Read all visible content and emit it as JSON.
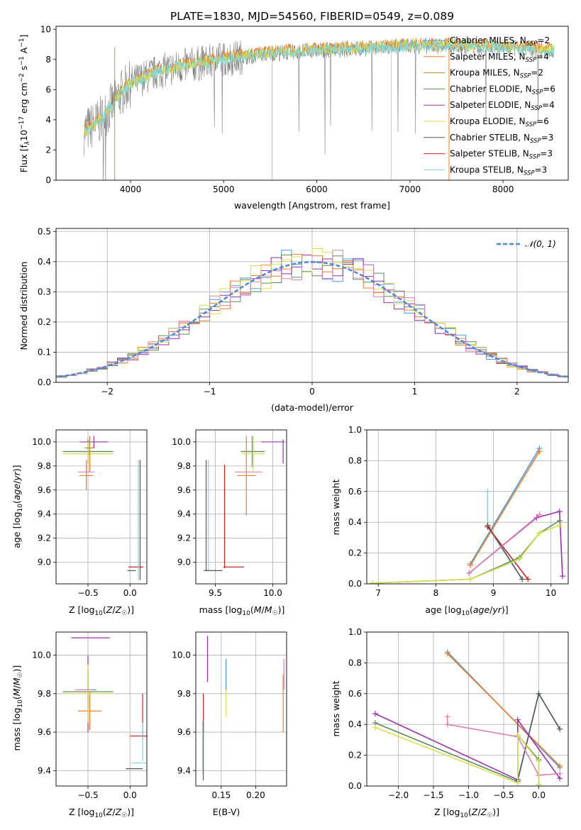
{
  "figure": {
    "title": "PLATE=1830, MJD=54560, FIBERID=0549, z=0.089",
    "model_colors": {
      "Chabrier MILES": "#4c9be0",
      "Salpeter MILES": "#f07f28",
      "Kroupa MILES": "#b08a2a",
      "Chabrier ELODIE": "#5c8c5c",
      "Salpeter ELODIE": "#9b2fae",
      "Kroupa ELODIE": "#d8df4a",
      "Chabrier STELIB": "#555555",
      "Salpeter STELIB": "#c8251f",
      "Kroupa STELIB": "#7fd6dc",
      "pink_series": "#e07fb2"
    }
  },
  "chart_data": [
    {
      "id": "spectrum",
      "type": "line",
      "title": "PLATE=1830, MJD=54560, FIBERID=0549, z=0.089",
      "xlabel": "wavelength [Angstrom, rest frame]",
      "ylabel": "Flux [f_λ10^-17 erg cm^-2 s^-1 A^-1]",
      "xlim": [
        3200,
        8700
      ],
      "ylim": [
        0,
        10.2
      ],
      "xticks": [
        "4000",
        "5000",
        "6000",
        "7000",
        "8000"
      ],
      "yticks": [
        "0",
        "2",
        "4",
        "6",
        "8",
        "10"
      ],
      "grid": false,
      "legend_position": "right",
      "legend": [
        {
          "name": "Chabrier MILES",
          "n": "2"
        },
        {
          "name": "Salpeter MILES",
          "n": "4"
        },
        {
          "name": "Kroupa MILES",
          "n": "2"
        },
        {
          "name": "Chabrier ELODIE",
          "n": "6"
        },
        {
          "name": "Salpeter ELODIE",
          "n": "4"
        },
        {
          "name": "Kroupa ELODIE",
          "n": "6"
        },
        {
          "name": "Chabrier STELIB",
          "n": "3"
        },
        {
          "name": "Salpeter STELIB",
          "n": "3"
        },
        {
          "name": "Kroupa STELIB",
          "n": "3"
        }
      ],
      "data_envelope": {
        "x": [
          3500,
          3700,
          3900,
          4000,
          4300,
          4600,
          5000,
          5500,
          6000,
          6500,
          7000,
          7500,
          8000,
          8500
        ],
        "y": [
          3.2,
          4.1,
          5.8,
          6.4,
          7.2,
          7.6,
          8.0,
          8.4,
          8.6,
          8.7,
          8.9,
          8.9,
          8.8,
          8.6
        ]
      }
    },
    {
      "id": "residuals",
      "type": "line",
      "xlabel": "(data-model)/error",
      "ylabel": "Normed distribution",
      "xlim": [
        -2.5,
        2.5
      ],
      "ylim": [
        0,
        0.51
      ],
      "xticks": [
        "−2",
        "−1",
        "0",
        "1",
        "2"
      ],
      "yticks": [
        "0.0",
        "0.1",
        "0.2",
        "0.3",
        "0.4",
        "0.5"
      ],
      "grid": true,
      "legend_position": "top-right",
      "reference": {
        "name": "𝒩(0, 1)",
        "mean": 0,
        "sigma": 1
      }
    },
    {
      "id": "age_vs_Z",
      "type": "scatter",
      "xlabel": "Z [log10(Z/Z☉)]",
      "ylabel": "age  [log10(age/yr)]",
      "xlim": [
        -0.88,
        0.2
      ],
      "ylim": [
        8.82,
        10.1
      ],
      "xticks": [
        "−0.5",
        "0.0"
      ],
      "yticks": [
        "9.0",
        "9.2",
        "9.4",
        "9.6",
        "9.8",
        "10.0"
      ],
      "grid": true,
      "points": [
        {
          "series": "Salpeter ELODIE",
          "x": -0.43,
          "y": 10.0,
          "xerr": 0.17,
          "yerr": 0.05
        },
        {
          "series": "Chabrier MILES",
          "x": -0.5,
          "y": 9.92,
          "xerr": 0.28,
          "yerr": 0.1
        },
        {
          "series": "Chabrier ELODIE",
          "x": -0.5,
          "y": 9.92,
          "xerr": 0.3,
          "yerr": 0.1
        },
        {
          "series": "Salpeter MILES",
          "x": -0.48,
          "y": 9.9,
          "xerr": 0.2,
          "yerr": 0.15
        },
        {
          "series": "Kroupa ELODIE",
          "x": -0.5,
          "y": 9.9,
          "xerr": 0.3,
          "yerr": 0.1
        },
        {
          "series": "Kroupa MILES",
          "x": -0.48,
          "y": 9.95,
          "xerr": 0.06,
          "yerr": 0.06
        },
        {
          "series": "pink_series",
          "x": -0.52,
          "y": 9.75,
          "xerr": 0.1,
          "yerr": 0.1
        },
        {
          "series": "Salpeter MILES",
          "x": -0.52,
          "y": 9.72,
          "xerr": 0.08,
          "yerr": 0.12
        },
        {
          "series": "Chabrier STELIB",
          "x": 0.02,
          "y": 8.93,
          "xerr": 0.05,
          "yerr": 0.0
        },
        {
          "series": "Salpeter STELIB",
          "x": 0.07,
          "y": 8.96,
          "xerr": 0.09,
          "yerr": 0.0
        },
        {
          "series": "Kroupa STELIB",
          "x": 0.1,
          "y": 9.35,
          "xerr": 0.0,
          "yerr": 0.5
        },
        {
          "series": "Chabrier STELIB",
          "x": 0.12,
          "y": 9.35,
          "xerr": 0.0,
          "yerr": 0.5
        }
      ]
    },
    {
      "id": "age_vs_mass",
      "type": "scatter",
      "xlabel": "mass [log10(M/M☉)]",
      "ylabel": "",
      "xlim": [
        9.33,
        10.12
      ],
      "ylim": [
        8.82,
        10.1
      ],
      "xticks": [
        "9.5",
        "10.0"
      ],
      "yticks": [
        "9.0",
        "9.2",
        "9.4",
        "9.6",
        "9.8",
        "10.0"
      ],
      "grid": true,
      "points": [
        {
          "series": "Salpeter ELODIE",
          "x": 10.0,
          "y": 10.0,
          "xerr": 0.1,
          "yerr": 0.0
        },
        {
          "series": "Salpeter ELODIE",
          "x": 10.09,
          "y": 9.92,
          "xerr": 0.0,
          "yerr": 0.1
        },
        {
          "series": "Chabrier MILES",
          "x": 9.82,
          "y": 9.92,
          "xerr": 0.1,
          "yerr": 0.13
        },
        {
          "series": "Chabrier ELODIE",
          "x": 9.83,
          "y": 9.92,
          "xerr": 0.1,
          "yerr": 0.1
        },
        {
          "series": "Salpeter MILES",
          "x": 9.77,
          "y": 9.72,
          "xerr": 0.08,
          "yerr": 0.33
        },
        {
          "series": "Kroupa ELODIE",
          "x": 9.83,
          "y": 9.9,
          "xerr": 0.1,
          "yerr": 0.15
        },
        {
          "series": "pink_series",
          "x": 9.79,
          "y": 9.75,
          "xerr": 0.12,
          "yerr": 0.0
        },
        {
          "series": "Chabrier STELIB",
          "x": 9.42,
          "y": 9.39,
          "xerr": 0.0,
          "yerr": 0.46
        },
        {
          "series": "Kroupa STELIB",
          "x": 9.44,
          "y": 9.39,
          "xerr": 0.0,
          "yerr": 0.46
        },
        {
          "series": "Chabrier STELIB",
          "x": 9.48,
          "y": 8.93,
          "xerr": 0.08,
          "yerr": 0.0
        },
        {
          "series": "Salpeter STELIB",
          "x": 9.58,
          "y": 9.38,
          "xerr": 0.0,
          "yerr": 0.43
        },
        {
          "series": "Salpeter STELIB",
          "x": 9.66,
          "y": 8.96,
          "xerr": 0.09,
          "yerr": 0.0
        }
      ]
    },
    {
      "id": "weight_vs_age",
      "type": "line",
      "xlabel": "age  [log10(age/yr)]",
      "ylabel": "mass weight",
      "xlim": [
        6.8,
        10.3
      ],
      "ylim": [
        0,
        1.0
      ],
      "xticks": [
        "7",
        "8",
        "9",
        "10"
      ],
      "yticks": [
        "0.0",
        "0.2",
        "0.4",
        "0.6",
        "0.8",
        "1.0"
      ],
      "grid": true,
      "series": [
        {
          "name": "Chabrier MILES",
          "x": [
            8.6,
            9.8
          ],
          "y": [
            0.13,
            0.88
          ]
        },
        {
          "name": "Salpeter MILES",
          "x": [
            8.6,
            9.8
          ],
          "y": [
            0.12,
            0.86
          ]
        },
        {
          "name": "Kroupa STELIB",
          "x": [
            8.9,
            8.9,
            9.5
          ],
          "y": [
            0.6,
            0.37,
            0.03
          ]
        },
        {
          "name": "Chabrier STELIB",
          "x": [
            8.9,
            9.5
          ],
          "y": [
            0.38,
            0.03
          ]
        },
        {
          "name": "Salpeter STELIB",
          "x": [
            8.9,
            9.6
          ],
          "y": [
            0.37,
            0.03
          ]
        },
        {
          "name": "Salpeter ELODIE",
          "x": [
            8.58,
            9.75,
            10.15,
            10.2
          ],
          "y": [
            0.07,
            0.43,
            0.47,
            0.05
          ]
        },
        {
          "name": "pink_series",
          "x": [
            8.58,
            9.8
          ],
          "y": [
            0.07,
            0.45
          ]
        },
        {
          "name": "Chabrier ELODIE",
          "x": [
            6.9,
            8.6,
            9.45,
            9.8,
            10.15
          ],
          "y": [
            0.005,
            0.03,
            0.17,
            0.33,
            0.41
          ]
        },
        {
          "name": "Kroupa ELODIE",
          "x": [
            6.9,
            8.6,
            9.45,
            9.8,
            10.15
          ],
          "y": [
            0.005,
            0.03,
            0.16,
            0.33,
            0.38
          ]
        }
      ]
    },
    {
      "id": "mass_vs_Z",
      "type": "scatter",
      "xlabel": "Z [log10(Z/Z☉)]",
      "ylabel": "mass [log10(M/M☉)]",
      "xlim": [
        -0.88,
        0.2
      ],
      "ylim": [
        9.32,
        10.12
      ],
      "xticks": [
        "−0.5",
        "0.0"
      ],
      "yticks": [
        "9.4",
        "9.6",
        "9.8",
        "10.0"
      ],
      "grid": true,
      "points": [
        {
          "series": "Salpeter ELODIE",
          "x": -0.47,
          "y": 10.09,
          "xerr": 0.23,
          "yerr": 0.0
        },
        {
          "series": "Salpeter ELODIE",
          "x": -0.5,
          "y": 9.8,
          "xerr": 0.0,
          "yerr": 0.2
        },
        {
          "series": "Chabrier MILES",
          "x": -0.5,
          "y": 9.82,
          "xerr": 0.1,
          "yerr": 0.1
        },
        {
          "series": "Chabrier ELODIE",
          "x": -0.5,
          "y": 9.81,
          "xerr": 0.3,
          "yerr": 0.1
        },
        {
          "series": "Salpeter MILES",
          "x": -0.48,
          "y": 9.71,
          "xerr": 0.14,
          "yerr": 0.1
        },
        {
          "series": "Kroupa ELODIE",
          "x": -0.5,
          "y": 9.8,
          "xerr": 0.3,
          "yerr": 0.15
        },
        {
          "series": "pink_series",
          "x": -0.55,
          "y": 9.82,
          "xerr": 0.1,
          "yerr": 0.0
        },
        {
          "series": "Salpeter STELIB",
          "x": 0.1,
          "y": 9.58,
          "xerr": 0.1,
          "yerr": 0.0
        },
        {
          "series": "Salpeter STELIB",
          "x": 0.15,
          "y": 9.68,
          "xerr": 0.0,
          "yerr": 0.12
        },
        {
          "series": "Kroupa STELIB",
          "x": 0.12,
          "y": 9.44,
          "xerr": 0.1,
          "yerr": 0.0
        },
        {
          "series": "Chabrier STELIB",
          "x": 0.05,
          "y": 9.41,
          "xerr": 0.1,
          "yerr": 0.0
        },
        {
          "series": "Kroupa STELIB",
          "x": 0.15,
          "y": 9.55,
          "xerr": 0.0,
          "yerr": 0.1
        }
      ]
    },
    {
      "id": "mass_vs_ebv",
      "type": "scatter",
      "xlabel": "E(B-V)",
      "ylabel": "",
      "xlim": [
        0.113,
        0.245
      ],
      "ylim": [
        9.32,
        10.12
      ],
      "xticks": [
        "0.15",
        "0.20"
      ],
      "yticks": [
        "9.4",
        "9.6",
        "9.8",
        "10.0"
      ],
      "grid": true,
      "points": [
        {
          "series": "Salpeter ELODIE",
          "x": 0.13,
          "y": 9.98,
          "xerr": 0.0,
          "yerr": 0.12
        },
        {
          "series": "Salpeter STELIB",
          "x": 0.124,
          "y": 9.7,
          "xerr": 0.0,
          "yerr": 0.1
        },
        {
          "series": "Chabrier STELIB",
          "x": 0.124,
          "y": 9.5,
          "xerr": 0.0,
          "yerr": 0.15
        },
        {
          "series": "Kroupa STELIB",
          "x": 0.123,
          "y": 9.52,
          "xerr": 0.0,
          "yerr": 0.14
        },
        {
          "series": "Kroupa ELODIE",
          "x": 0.157,
          "y": 9.83,
          "xerr": 0.0,
          "yerr": 0.15
        },
        {
          "series": "Chabrier MILES",
          "x": 0.157,
          "y": 9.9,
          "xerr": 0.0,
          "yerr": 0.08
        },
        {
          "series": "Salpeter MILES",
          "x": 0.24,
          "y": 9.75,
          "xerr": 0.0,
          "yerr": 0.15
        },
        {
          "series": "pink_series",
          "x": 0.241,
          "y": 9.9,
          "xerr": 0.0,
          "yerr": 0.08
        }
      ]
    },
    {
      "id": "weight_vs_Z",
      "type": "line",
      "xlabel": "Z [log10(Z/Z☉)]",
      "ylabel": "mass weight",
      "xlim": [
        -2.45,
        0.42
      ],
      "ylim": [
        0,
        1.0
      ],
      "xticks": [
        "−2.0",
        "−1.5",
        "−1.0",
        "−0.5",
        "0.0"
      ],
      "yticks": [
        "0.0",
        "0.2",
        "0.4",
        "0.6",
        "0.8",
        "1.0"
      ],
      "grid": true,
      "series": [
        {
          "name": "Chabrier MILES",
          "x": [
            -1.3,
            0.3
          ],
          "y": [
            0.87,
            0.12
          ]
        },
        {
          "name": "Salpeter MILES",
          "x": [
            -1.3,
            0.3
          ],
          "y": [
            0.86,
            0.13
          ]
        },
        {
          "name": "Kroupa STELIB",
          "x": [
            -0.3,
            0.0,
            0.3
          ],
          "y": [
            0.03,
            0.6,
            0.37
          ]
        },
        {
          "name": "Chabrier STELIB",
          "x": [
            -0.3,
            0.0,
            0.3
          ],
          "y": [
            0.04,
            0.6,
            0.37
          ]
        },
        {
          "name": "Salpeter ELODIE",
          "x": [
            -2.33,
            -0.3,
            -0.3,
            0.3
          ],
          "y": [
            0.47,
            0.04,
            0.43,
            0.05
          ]
        },
        {
          "name": "pink_series",
          "x": [
            -1.3,
            -1.3,
            -0.3,
            0.0,
            0.3
          ],
          "y": [
            0.45,
            0.4,
            0.32,
            0.07,
            0.08
          ]
        },
        {
          "name": "Chabrier ELODIE",
          "x": [
            -2.33,
            -0.3,
            -0.3,
            0.0,
            0.0
          ],
          "y": [
            0.41,
            0.03,
            0.33,
            0.17,
            0.01
          ]
        },
        {
          "name": "Kroupa ELODIE",
          "x": [
            -2.33,
            -0.3,
            -0.3,
            0.0,
            0.0
          ],
          "y": [
            0.38,
            0.02,
            0.33,
            0.16,
            0.01
          ]
        }
      ]
    }
  ]
}
